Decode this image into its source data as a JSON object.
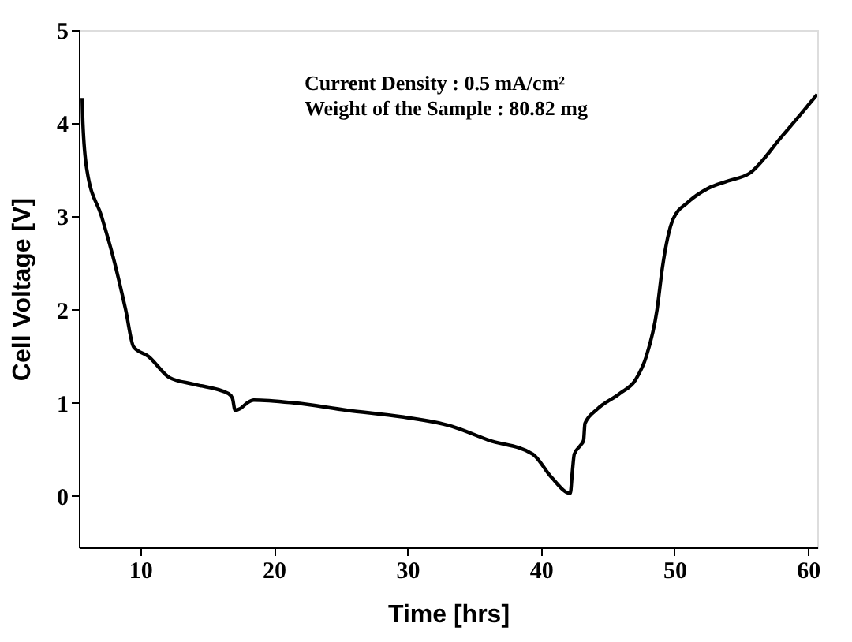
{
  "chart_data": {
    "type": "line",
    "xlabel": "Time [hrs]",
    "ylabel": "Cell Voltage [V]",
    "annotations": [
      "Current Density : 0.5 mA/cm²",
      "Weight of the Sample : 80.82 mg"
    ],
    "xlim": [
      5.4,
      60.7
    ],
    "ylim": [
      -0.55,
      5
    ],
    "xticks": [
      10,
      20,
      30,
      40,
      50,
      60
    ],
    "yticks": [
      0,
      1,
      2,
      3,
      4,
      5
    ],
    "grid": false,
    "marker": "none",
    "line_style": "solid",
    "series": [
      {
        "color": "#000000",
        "x": [
          5.65,
          5.7,
          6.0,
          7.1,
          7.9,
          8.9,
          9.5,
          10.6,
          12.2,
          14.0,
          16.6,
          16.9,
          17.1,
          17.5,
          18.0,
          18.5,
          21.5,
          25.5,
          29.6,
          33.3,
          36.1,
          39.4,
          40.8,
          42.2,
          42.35,
          42.5,
          43.0,
          43.2,
          43.3,
          44.2,
          45.9,
          47.1,
          47.9,
          48.7,
          49.1,
          49.9,
          51.0,
          52.5,
          54.0,
          55.6,
          58.0,
          60.7
        ],
        "values": [
          4.27,
          4.0,
          3.5,
          3.0,
          2.6,
          2.0,
          1.6,
          1.5,
          1.27,
          1.2,
          1.1,
          1.05,
          0.92,
          0.94,
          1.0,
          1.03,
          1.0,
          0.92,
          0.85,
          0.75,
          0.6,
          0.45,
          0.2,
          0.03,
          0.25,
          0.45,
          0.55,
          0.6,
          0.78,
          0.93,
          1.1,
          1.25,
          1.5,
          2.0,
          2.45,
          2.97,
          3.15,
          3.3,
          3.38,
          3.46,
          3.85,
          4.31
        ]
      }
    ]
  }
}
